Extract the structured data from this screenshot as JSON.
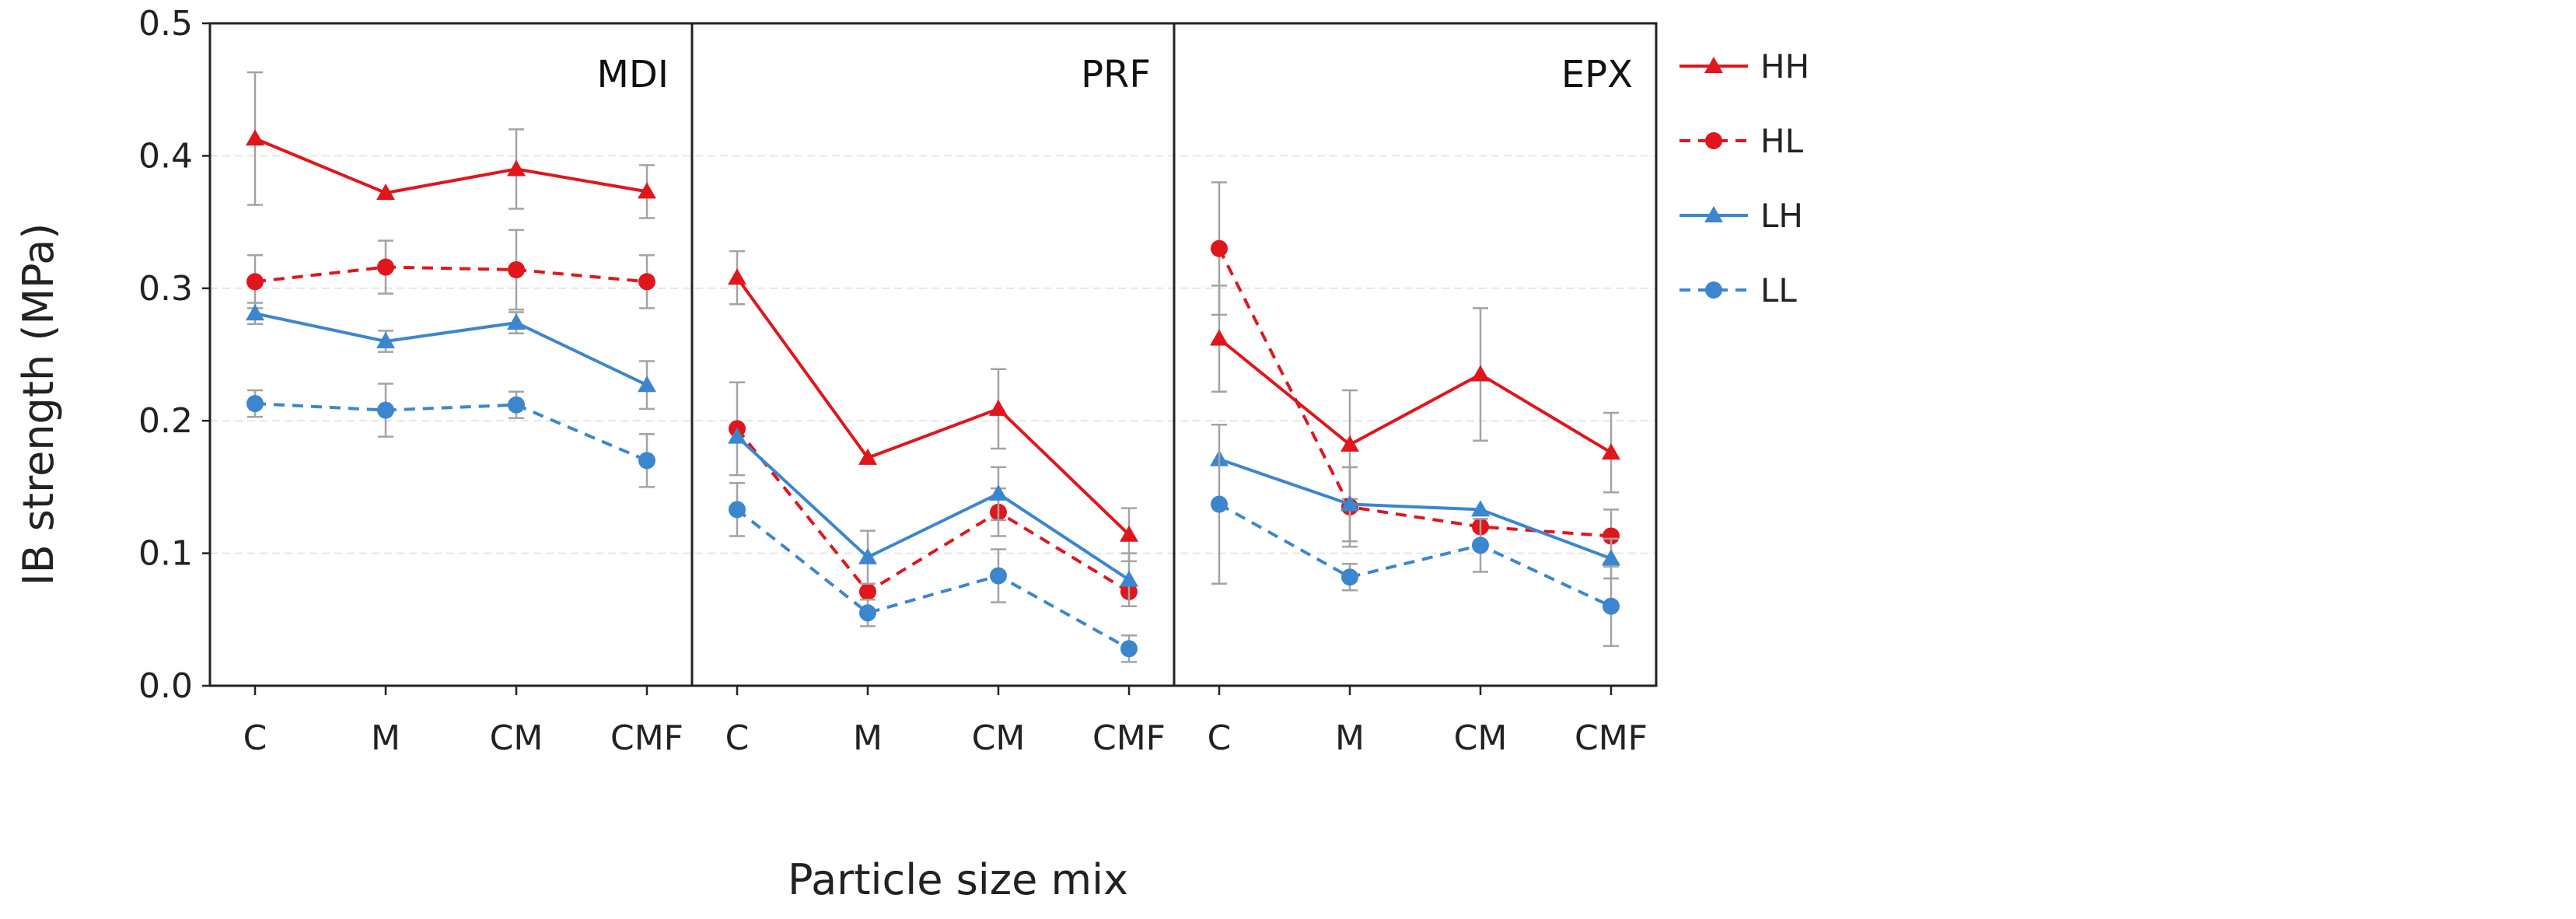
{
  "chart_data": {
    "type": "line",
    "title": "",
    "xlabel": "Particle size mix",
    "ylabel": "IB strength (MPa)",
    "ylim": [
      0,
      0.5
    ],
    "yticks": [
      "0.0",
      "0.1",
      "0.2",
      "0.3",
      "0.4",
      "0.5"
    ],
    "categories": [
      "C",
      "M",
      "CM",
      "CMF"
    ],
    "legend_position": "right",
    "series_styles": [
      {
        "name": "HH",
        "color": "#e0161c",
        "dash": "solid",
        "marker": "triangle"
      },
      {
        "name": "HL",
        "color": "#e0161c",
        "dash": "dashed",
        "marker": "circle"
      },
      {
        "name": "LH",
        "color": "#3b86cf",
        "dash": "solid",
        "marker": "triangle"
      },
      {
        "name": "LL",
        "color": "#3b86cf",
        "dash": "dashed",
        "marker": "circle"
      }
    ],
    "panels": [
      {
        "label": "MDI",
        "series": [
          {
            "name": "HH",
            "values": [
              0.413,
              0.372,
              0.39,
              0.373
            ],
            "errors": [
              0.05,
              0.0,
              0.03,
              0.02
            ]
          },
          {
            "name": "HL",
            "values": [
              0.305,
              0.316,
              0.314,
              0.305
            ],
            "errors": [
              0.02,
              0.02,
              0.03,
              0.02
            ]
          },
          {
            "name": "LH",
            "values": [
              0.281,
              0.26,
              0.274,
              0.227
            ],
            "errors": [
              0.008,
              0.008,
              0.008,
              0.018
            ]
          },
          {
            "name": "LL",
            "values": [
              0.213,
              0.208,
              0.212,
              0.17
            ],
            "errors": [
              0.01,
              0.02,
              0.01,
              0.02
            ]
          }
        ]
      },
      {
        "label": "PRF",
        "series": [
          {
            "name": "HH",
            "values": [
              0.308,
              0.172,
              0.209,
              0.114
            ],
            "errors": [
              0.02,
              0.0,
              0.03,
              0.02
            ]
          },
          {
            "name": "HL",
            "values": [
              0.194,
              0.071,
              0.131,
              0.071
            ],
            "errors": [
              0.035,
              0.0,
              0.018,
              0.0
            ]
          },
          {
            "name": "LH",
            "values": [
              0.188,
              0.097,
              0.145,
              0.08
            ],
            "errors": [
              0.0,
              0.02,
              0.02,
              0.02
            ]
          },
          {
            "name": "LL",
            "values": [
              0.133,
              0.055,
              0.083,
              0.028
            ],
            "errors": [
              0.02,
              0.01,
              0.02,
              0.01
            ]
          }
        ]
      },
      {
        "label": "EPX",
        "series": [
          {
            "name": "HH",
            "values": [
              0.262,
              0.182,
              0.235,
              0.176
            ],
            "errors": [
              0.04,
              0.041,
              0.05,
              0.03
            ]
          },
          {
            "name": "HL",
            "values": [
              0.33,
              0.135,
              0.12,
              0.113
            ],
            "errors": [
              0.05,
              0.03,
              0.0,
              0.02
            ]
          },
          {
            "name": "LH",
            "values": [
              0.171,
              0.137,
              0.133,
              0.096
            ],
            "errors": [
              0.0,
              0.028,
              0.0,
              0.015
            ]
          },
          {
            "name": "LL",
            "values": [
              0.137,
              0.082,
              0.106,
              0.06
            ],
            "errors": [
              0.06,
              0.01,
              0.02,
              0.03
            ]
          }
        ]
      }
    ]
  }
}
